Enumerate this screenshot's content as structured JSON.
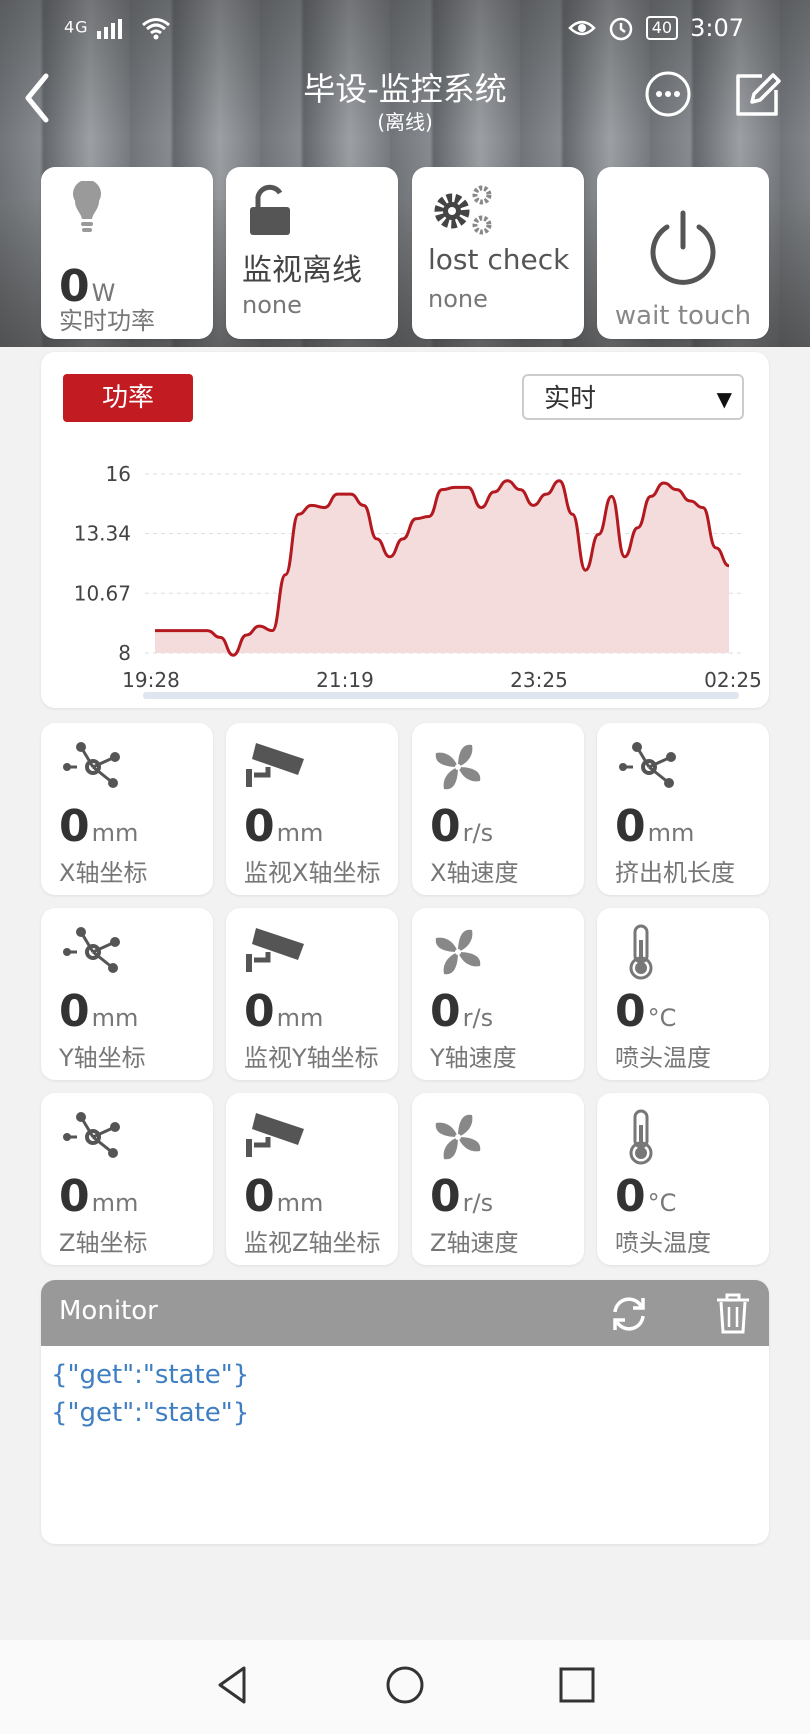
{
  "status_bar": {
    "signal": "4G",
    "battery": "40",
    "time": "3:07"
  },
  "header": {
    "title": "毕设-监控系统",
    "subtitle": "(离线)"
  },
  "top_tiles": {
    "power": {
      "value": "0",
      "unit": "W",
      "label": "实时功率"
    },
    "monitor": {
      "title": "监视离线",
      "sub": "none"
    },
    "lost": {
      "title": "lost check",
      "sub": "none"
    },
    "switch": {
      "label": "wait touch"
    }
  },
  "chart_card": {
    "tag": "功率",
    "period_selected": "实时"
  },
  "chart_data": {
    "type": "area",
    "x_ticks": [
      "19:28",
      "21:19",
      "23:25",
      "02:25"
    ],
    "y_ticks": [
      "16",
      "13.34",
      "10.67",
      "8"
    ],
    "ylim": [
      8,
      16
    ],
    "grid": true,
    "color": "#b3191f",
    "fill": "#f5dcdc",
    "values": [
      9.0,
      9.0,
      9.0,
      9.0,
      9.0,
      8.7,
      7.9,
      8.8,
      9.2,
      9.0,
      11.5,
      14.2,
      14.6,
      14.5,
      15.1,
      15.1,
      14.6,
      13.1,
      12.3,
      13.1,
      14.0,
      14.1,
      15.3,
      15.4,
      15.4,
      14.5,
      15.2,
      15.7,
      15.3,
      14.6,
      15.1,
      15.7,
      14.2,
      11.7,
      13.3,
      15.0,
      12.3,
      13.6,
      15.0,
      15.6,
      15.3,
      14.8,
      14.5,
      12.7,
      11.9
    ]
  },
  "grid_tiles": [
    {
      "icon": "axis-icon",
      "value": "0",
      "unit": "mm",
      "label": "X轴坐标"
    },
    {
      "icon": "camera-icon",
      "value": "0",
      "unit": "mm",
      "label": "监视X轴坐标"
    },
    {
      "icon": "fan-icon",
      "value": "0",
      "unit": "r/s",
      "label": "X轴速度"
    },
    {
      "icon": "axis-icon",
      "value": "0",
      "unit": "mm",
      "label": "挤出机长度"
    },
    {
      "icon": "axis-icon",
      "value": "0",
      "unit": "mm",
      "label": "Y轴坐标"
    },
    {
      "icon": "camera-icon",
      "value": "0",
      "unit": "mm",
      "label": "监视Y轴坐标"
    },
    {
      "icon": "fan-icon",
      "value": "0",
      "unit": "r/s",
      "label": "Y轴速度"
    },
    {
      "icon": "thermometer-icon",
      "value": "0",
      "unit": "°C",
      "label": "喷头温度"
    },
    {
      "icon": "axis-icon",
      "value": "0",
      "unit": "mm",
      "label": "Z轴坐标"
    },
    {
      "icon": "camera-icon",
      "value": "0",
      "unit": "mm",
      "label": "监视Z轴坐标"
    },
    {
      "icon": "fan-icon",
      "value": "0",
      "unit": "r/s",
      "label": "Z轴速度"
    },
    {
      "icon": "thermometer-icon",
      "value": "0",
      "unit": "°C",
      "label": "喷头温度"
    }
  ],
  "monitor": {
    "title": "Monitor",
    "lines": [
      "{\"get\":\"state\"}",
      "{\"get\":\"state\"}"
    ]
  }
}
